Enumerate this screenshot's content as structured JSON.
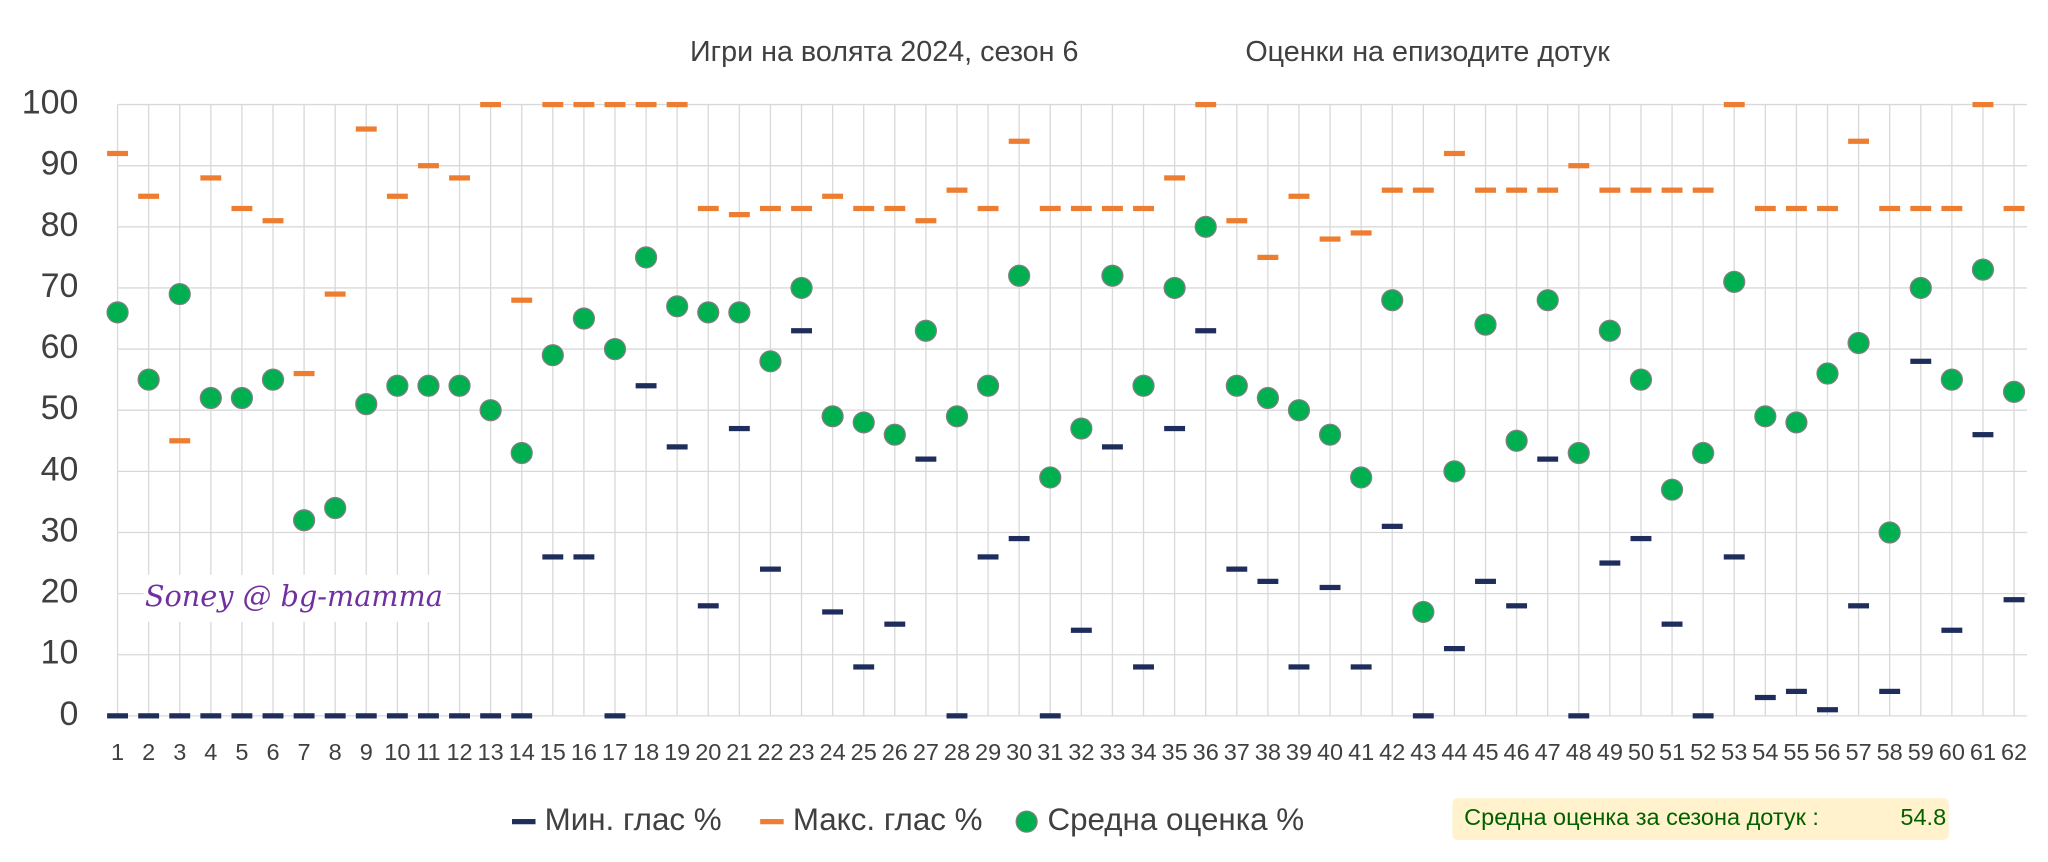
{
  "chart_data": {
    "type": "scatter",
    "title": "Игри на волята 2024, сезон 6",
    "subtitle": "Оценки на епизодите дотук",
    "annotation": "Soney @ bg-mamma",
    "summary": {
      "label": "Средна оценка за сезона дотук :",
      "value": 54.8
    },
    "categories": [
      "1",
      "2",
      "3",
      "4",
      "5",
      "6",
      "7",
      "8",
      "9",
      "10",
      "11",
      "12",
      "13",
      "14",
      "15",
      "16",
      "17",
      "18",
      "19",
      "20",
      "21",
      "22",
      "23",
      "24",
      "25",
      "26",
      "27",
      "28",
      "29",
      "30",
      "31",
      "32",
      "33",
      "34",
      "35",
      "36",
      "37",
      "38",
      "39",
      "40",
      "41",
      "42",
      "43",
      "44",
      "45",
      "46",
      "47",
      "48",
      "49",
      "50",
      "51",
      "52",
      "53",
      "54",
      "55",
      "56",
      "57",
      "58",
      "59",
      "60",
      "61",
      "62"
    ],
    "series": [
      {
        "name": "Мин. глас %",
        "color": "#1f2d5c",
        "marker": "dash",
        "values": [
          0,
          0,
          0,
          0,
          0,
          0,
          0,
          0,
          0,
          0,
          0,
          0,
          0,
          0,
          26,
          26,
          0,
          54,
          44,
          18,
          47,
          24,
          63,
          17,
          8,
          15,
          42,
          0,
          26,
          29,
          0,
          14,
          44,
          8,
          47,
          63,
          24,
          22,
          8,
          21,
          8,
          31,
          0,
          11,
          22,
          18,
          42,
          0,
          25,
          29,
          15,
          0,
          26,
          3,
          4,
          1,
          18,
          4,
          58,
          14,
          46,
          19
        ]
      },
      {
        "name": "Макс. глас %",
        "color": "#ed7d31",
        "marker": "dash",
        "values": [
          92,
          85,
          45,
          88,
          83,
          81,
          56,
          69,
          96,
          85,
          90,
          88,
          100,
          68,
          100,
          100,
          100,
          100,
          100,
          83,
          82,
          83,
          83,
          85,
          83,
          83,
          81,
          86,
          83,
          94,
          83,
          83,
          83,
          83,
          88,
          100,
          81,
          75,
          85,
          78,
          79,
          86,
          86,
          92,
          86,
          86,
          86,
          90,
          86,
          86,
          86,
          86,
          100,
          83,
          83,
          83,
          94,
          83,
          83,
          83,
          100,
          83
        ]
      },
      {
        "name": "Средна оценка %",
        "color": "#00b050",
        "marker": "circle",
        "values": [
          66,
          55,
          69,
          52,
          52,
          55,
          32,
          34,
          51,
          54,
          54,
          54,
          50,
          43,
          59,
          65,
          60,
          75,
          67,
          66,
          66,
          58,
          70,
          49,
          48,
          46,
          63,
          49,
          54,
          72,
          39,
          47,
          72,
          54,
          70,
          80,
          54,
          52,
          50,
          46,
          39,
          68,
          17,
          40,
          64,
          45,
          68,
          43,
          63,
          55,
          37,
          43,
          71,
          49,
          48,
          56,
          61,
          30,
          70,
          55,
          73,
          53
        ]
      }
    ],
    "ylim": [
      0,
      100
    ],
    "yticks": [
      0,
      10,
      20,
      30,
      40,
      50,
      60,
      70,
      80,
      90,
      100
    ],
    "grid": true,
    "legend": "bottom"
  }
}
